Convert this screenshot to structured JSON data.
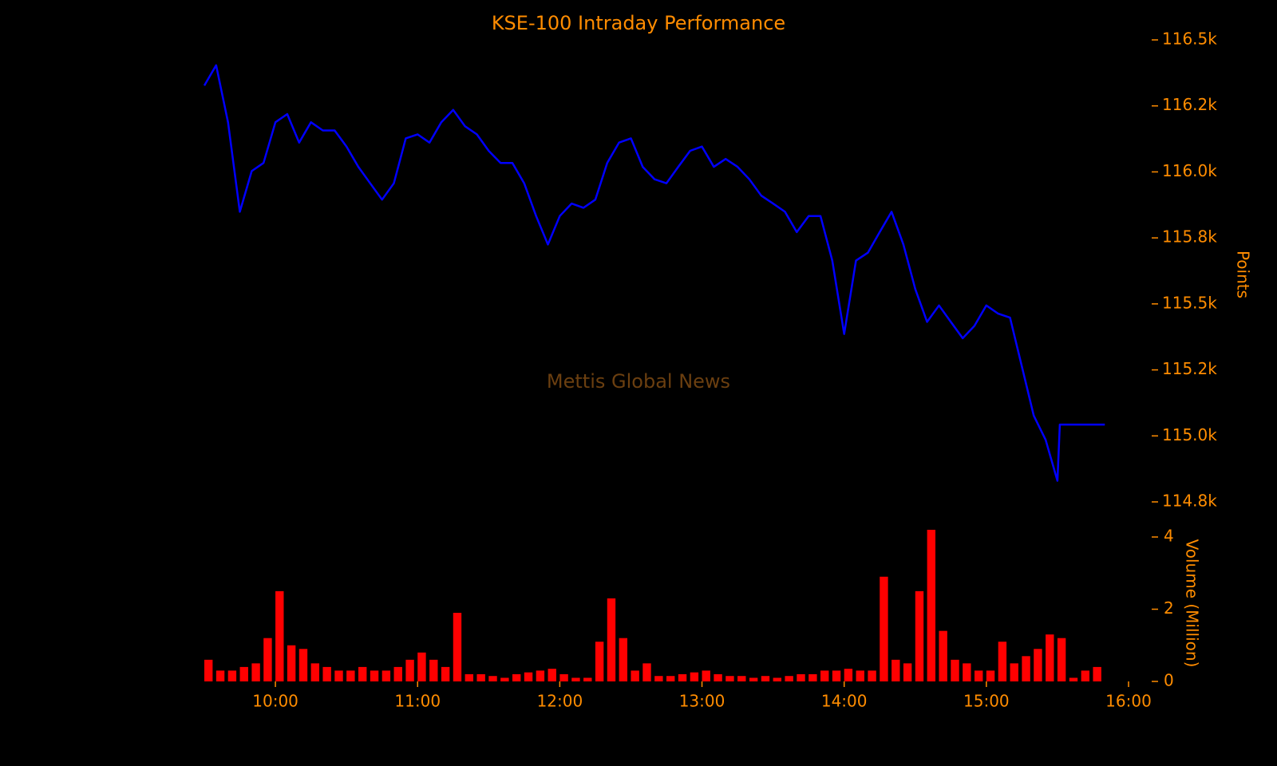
{
  "chart_data": [
    {
      "type": "line",
      "title": "KSE-100 Intraday Performance",
      "annotation": "Mettis Global News",
      "ylabel": "Points",
      "color": "#0000ff",
      "x": [
        "09:30",
        "09:35",
        "09:40",
        "09:45",
        "09:50",
        "09:55",
        "10:00",
        "10:05",
        "10:10",
        "10:15",
        "10:20",
        "10:25",
        "10:30",
        "10:35",
        "10:40",
        "10:45",
        "10:50",
        "10:55",
        "11:00",
        "11:05",
        "11:10",
        "11:15",
        "11:20",
        "11:25",
        "11:30",
        "11:35",
        "11:40",
        "11:45",
        "11:50",
        "11:55",
        "12:00",
        "12:05",
        "12:10",
        "12:15",
        "12:20",
        "12:25",
        "12:30",
        "12:35",
        "12:40",
        "12:45",
        "12:50",
        "12:55",
        "13:00",
        "13:05",
        "13:10",
        "13:15",
        "13:20",
        "13:25",
        "13:30",
        "13:35",
        "13:40",
        "13:45",
        "13:50",
        "13:55",
        "14:00",
        "14:05",
        "14:10",
        "14:15",
        "14:20",
        "14:25",
        "14:30",
        "14:35",
        "14:40",
        "14:45",
        "14:50",
        "14:55",
        "15:00",
        "15:05",
        "15:10",
        "15:15",
        "15:20",
        "15:25",
        "15:30",
        "15:31",
        "15:50"
      ],
      "values": [
        116327,
        116404,
        116188,
        115849,
        116003,
        116034,
        116188,
        116219,
        116111,
        116188,
        116157,
        116157,
        116096,
        116019,
        115957,
        115895,
        115957,
        116127,
        116142,
        116111,
        116188,
        116235,
        116173,
        116142,
        116080,
        116034,
        116034,
        115957,
        115833,
        115725,
        115833,
        115880,
        115864,
        115895,
        116034,
        116111,
        116127,
        116019,
        115972,
        115957,
        116019,
        116080,
        116096,
        116019,
        116049,
        116019,
        115972,
        115910,
        115880,
        115849,
        115772,
        115833,
        115833,
        115664,
        115386,
        115664,
        115694,
        115772,
        115849,
        115725,
        115556,
        115432,
        115494,
        115432,
        115370,
        115417,
        115494,
        115463,
        115448,
        115262,
        115077,
        114985,
        114830,
        115043,
        115043
      ],
      "xlim": [
        "09:30",
        "16:00"
      ],
      "ylim": [
        114750,
        116500
      ],
      "yticks": [
        {
          "value": 116500,
          "label": "116.5k"
        },
        {
          "value": 116250,
          "label": "116.2k"
        },
        {
          "value": 116000,
          "label": "116.0k"
        },
        {
          "value": 115750,
          "label": "115.8k"
        },
        {
          "value": 115500,
          "label": "115.5k"
        },
        {
          "value": 115250,
          "label": "115.2k"
        },
        {
          "value": 115000,
          "label": "115.0k"
        },
        {
          "value": 114750,
          "label": "114.8k"
        }
      ]
    },
    {
      "type": "bar",
      "ylabel": "Volume (Million)",
      "color": "#ff0000",
      "x": [
        "09:30",
        "09:35",
        "09:40",
        "09:45",
        "09:50",
        "09:55",
        "10:00",
        "10:05",
        "10:10",
        "10:15",
        "10:20",
        "10:25",
        "10:30",
        "10:35",
        "10:40",
        "10:45",
        "10:50",
        "10:55",
        "11:00",
        "11:05",
        "11:10",
        "11:15",
        "11:20",
        "11:25",
        "11:30",
        "11:35",
        "11:40",
        "11:45",
        "11:50",
        "11:55",
        "12:00",
        "12:05",
        "12:10",
        "12:15",
        "12:20",
        "12:25",
        "12:30",
        "12:35",
        "12:40",
        "12:45",
        "12:50",
        "12:55",
        "13:00",
        "13:05",
        "13:10",
        "13:15",
        "13:20",
        "13:25",
        "13:30",
        "13:35",
        "13:40",
        "13:45",
        "13:50",
        "13:55",
        "14:00",
        "14:05",
        "14:10",
        "14:15",
        "14:20",
        "14:25",
        "14:30",
        "14:35",
        "14:40",
        "14:45",
        "14:50",
        "14:55",
        "15:00",
        "15:05",
        "15:10",
        "15:15",
        "15:20",
        "15:25",
        "15:30",
        "15:35",
        "15:40",
        "15:45"
      ],
      "values": [
        0.6,
        0.3,
        0.3,
        0.4,
        0.5,
        1.2,
        2.5,
        1.0,
        0.9,
        0.5,
        0.4,
        0.3,
        0.3,
        0.4,
        0.3,
        0.3,
        0.4,
        0.6,
        0.8,
        0.6,
        0.4,
        1.9,
        0.2,
        0.2,
        0.15,
        0.1,
        0.2,
        0.25,
        0.3,
        0.35,
        0.2,
        0.1,
        0.1,
        1.1,
        2.3,
        1.2,
        0.3,
        0.5,
        0.15,
        0.15,
        0.2,
        0.25,
        0.3,
        0.2,
        0.15,
        0.15,
        0.1,
        0.15,
        0.1,
        0.15,
        0.2,
        0.2,
        0.3,
        0.3,
        0.35,
        0.3,
        0.3,
        2.9,
        0.6,
        0.5,
        2.5,
        4.2,
        1.4,
        0.6,
        0.5,
        0.3,
        0.3,
        1.1,
        0.5,
        0.7,
        0.9,
        1.3,
        1.2,
        0.1,
        0.3,
        0.4
      ],
      "xlim": [
        "09:30",
        "16:00"
      ],
      "xticks": [
        "10:00",
        "11:00",
        "12:00",
        "13:00",
        "14:00",
        "15:00",
        "16:00"
      ],
      "ylim": [
        0,
        4
      ],
      "yticks": [
        0,
        2,
        4
      ]
    }
  ]
}
